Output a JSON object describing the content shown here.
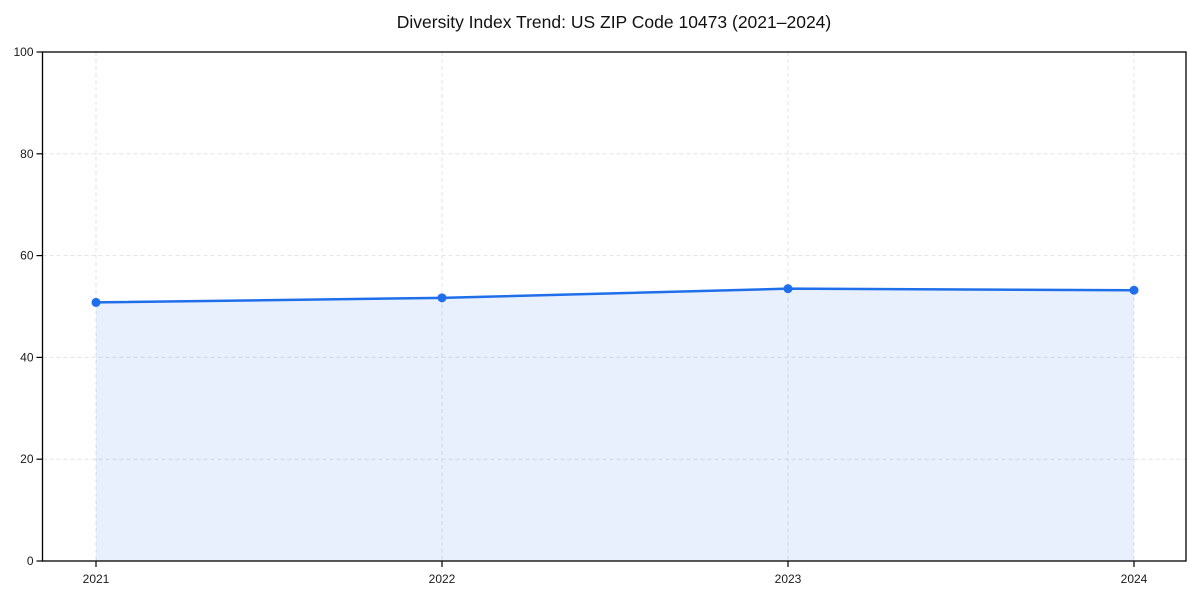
{
  "chart_data": {
    "type": "area",
    "title": "Diversity Index Trend: US ZIP Code 10473 (2021–2024)",
    "series_name": "Diversity Index",
    "categories": [
      "2021",
      "2022",
      "2023",
      "2024"
    ],
    "values": [
      50.8,
      51.7,
      53.5,
      53.2
    ],
    "xlabel": "",
    "ylabel": "",
    "ylim": [
      0,
      100
    ],
    "yticks": [
      0,
      20,
      40,
      60,
      80,
      100
    ],
    "xticks": [
      "2021",
      "2022",
      "2023",
      "2024"
    ],
    "grid": true,
    "grid_style": "dashed",
    "legend_position": "none",
    "marker": "circle",
    "colors": {
      "line": "#1f6feb",
      "marker": "#1f6feb",
      "area_fill": "rgba(31,111,235,0.10)",
      "grid": "#e3e3e3",
      "axis": "#000000",
      "background": "#ffffff",
      "text": "#111111"
    }
  }
}
